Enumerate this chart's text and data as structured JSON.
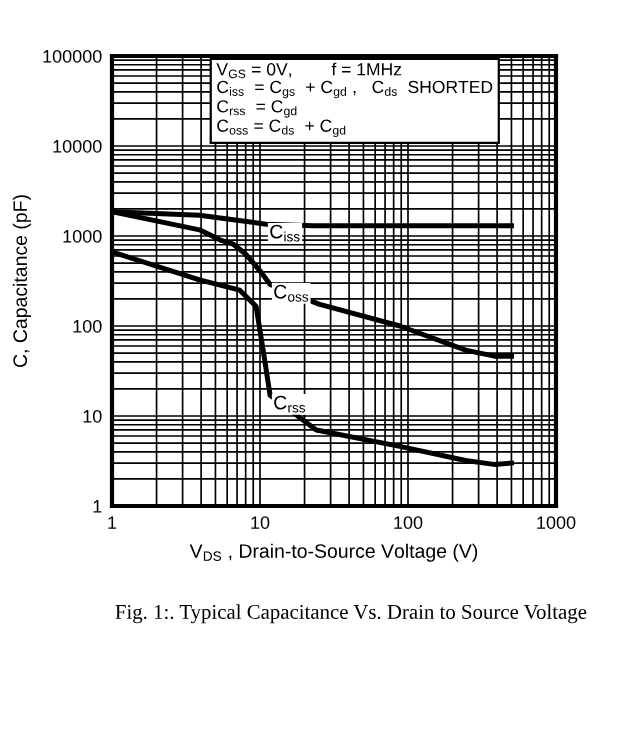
{
  "chart_data": {
    "type": "line",
    "xlabel": "V$_{DS}$ , Drain-to-Source Voltage (V)",
    "ylabel": "C, Capacitance (pF)",
    "log": "xy",
    "grid": true,
    "marker": "none",
    "line_style": "solid",
    "xlim": [
      1,
      1000
    ],
    "xticks": [
      1,
      10,
      100,
      1000
    ],
    "ylim": [
      1,
      100000
    ],
    "yticks": [
      1,
      10,
      100,
      1000,
      10000,
      100000
    ],
    "series": [
      {
        "name": "C$_{iss}$",
        "color": "#000000",
        "x": [
          1,
          3.9,
          7,
          11,
          23,
          100,
          500
        ],
        "values": [
          1860,
          1700,
          1500,
          1350,
          1300,
          1300,
          1300
        ]
      },
      {
        "name": "C$_{oss}$",
        "color": "#000000",
        "x": [
          1,
          3.9,
          5.4,
          6.6,
          8,
          10,
          11.7,
          25,
          88,
          245,
          390,
          500
        ],
        "values": [
          1860,
          1170,
          900,
          810,
          630,
          410,
          290,
          175,
          100,
          54,
          46,
          46
        ]
      },
      {
        "name": "C$_{rss}$",
        "color": "#000000",
        "x": [
          1,
          3.9,
          7.3,
          9.4,
          10.6,
          11.7,
          24,
          88,
          245,
          380,
          500
        ],
        "values": [
          665,
          325,
          250,
          166,
          49,
          17,
          7,
          4.6,
          3.2,
          2.9,
          3
        ]
      }
    ],
    "annotations": [
      "V$_{GS}$ = 0V,        f = 1MHz",
      "C$_{iss}$  = C$_{gs}$  + C$_{gd}$ ,   C$_{ds}$  SHORTED",
      "C$_{rss}$  = C$_{gd}$",
      "C$_{oss}$ = C$_{ds}$  + C$_{gd}$",
      "Fig. 1:. Typical Capacitance Vs. Drain to Source Voltage"
    ]
  }
}
